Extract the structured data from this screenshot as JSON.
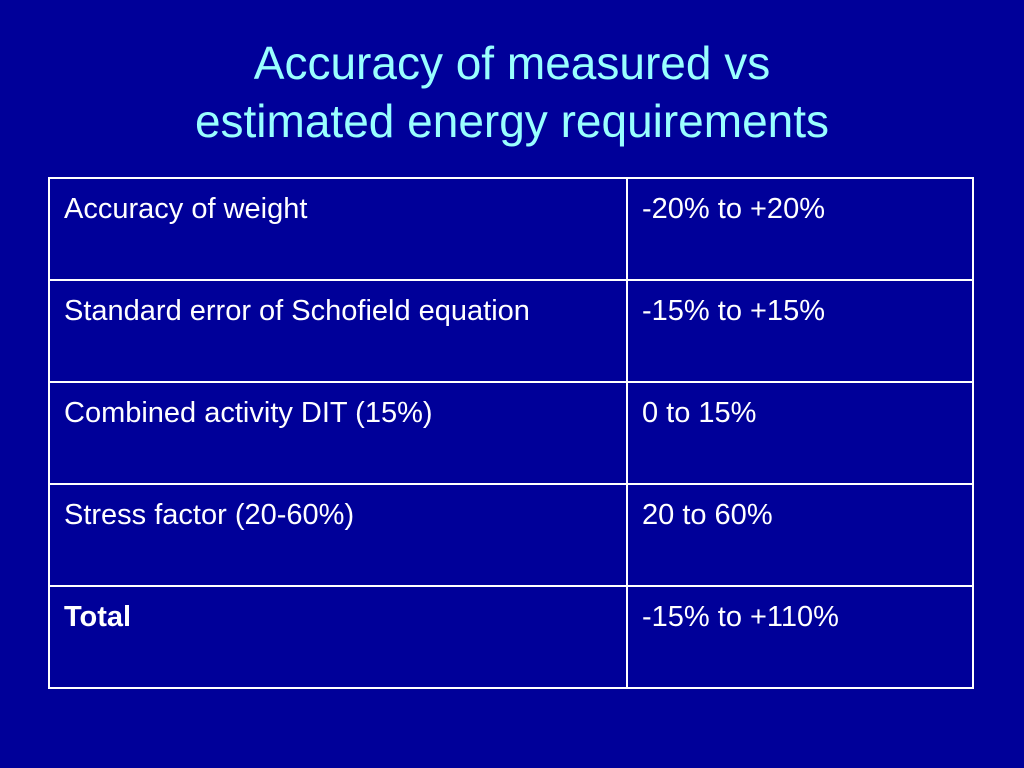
{
  "title": {
    "line1": "Accuracy of measured vs",
    "line2": "estimated energy requirements"
  },
  "table": {
    "rows": [
      {
        "label": "Accuracy of weight",
        "value": "-20% to +20%"
      },
      {
        "label": "Standard error of Schofield equation",
        "value": "-15% to +15%"
      },
      {
        "label": "Combined activity DIT (15%)",
        "value": "0 to 15%"
      },
      {
        "label": "Stress factor (20-60%)",
        "value": "20 to 60%"
      },
      {
        "label": "Total",
        "value": "-15% to +110%"
      }
    ]
  },
  "colors": {
    "background": "#000099",
    "title": "#99ffff",
    "text": "#ffffff",
    "border": "#ffffff"
  }
}
